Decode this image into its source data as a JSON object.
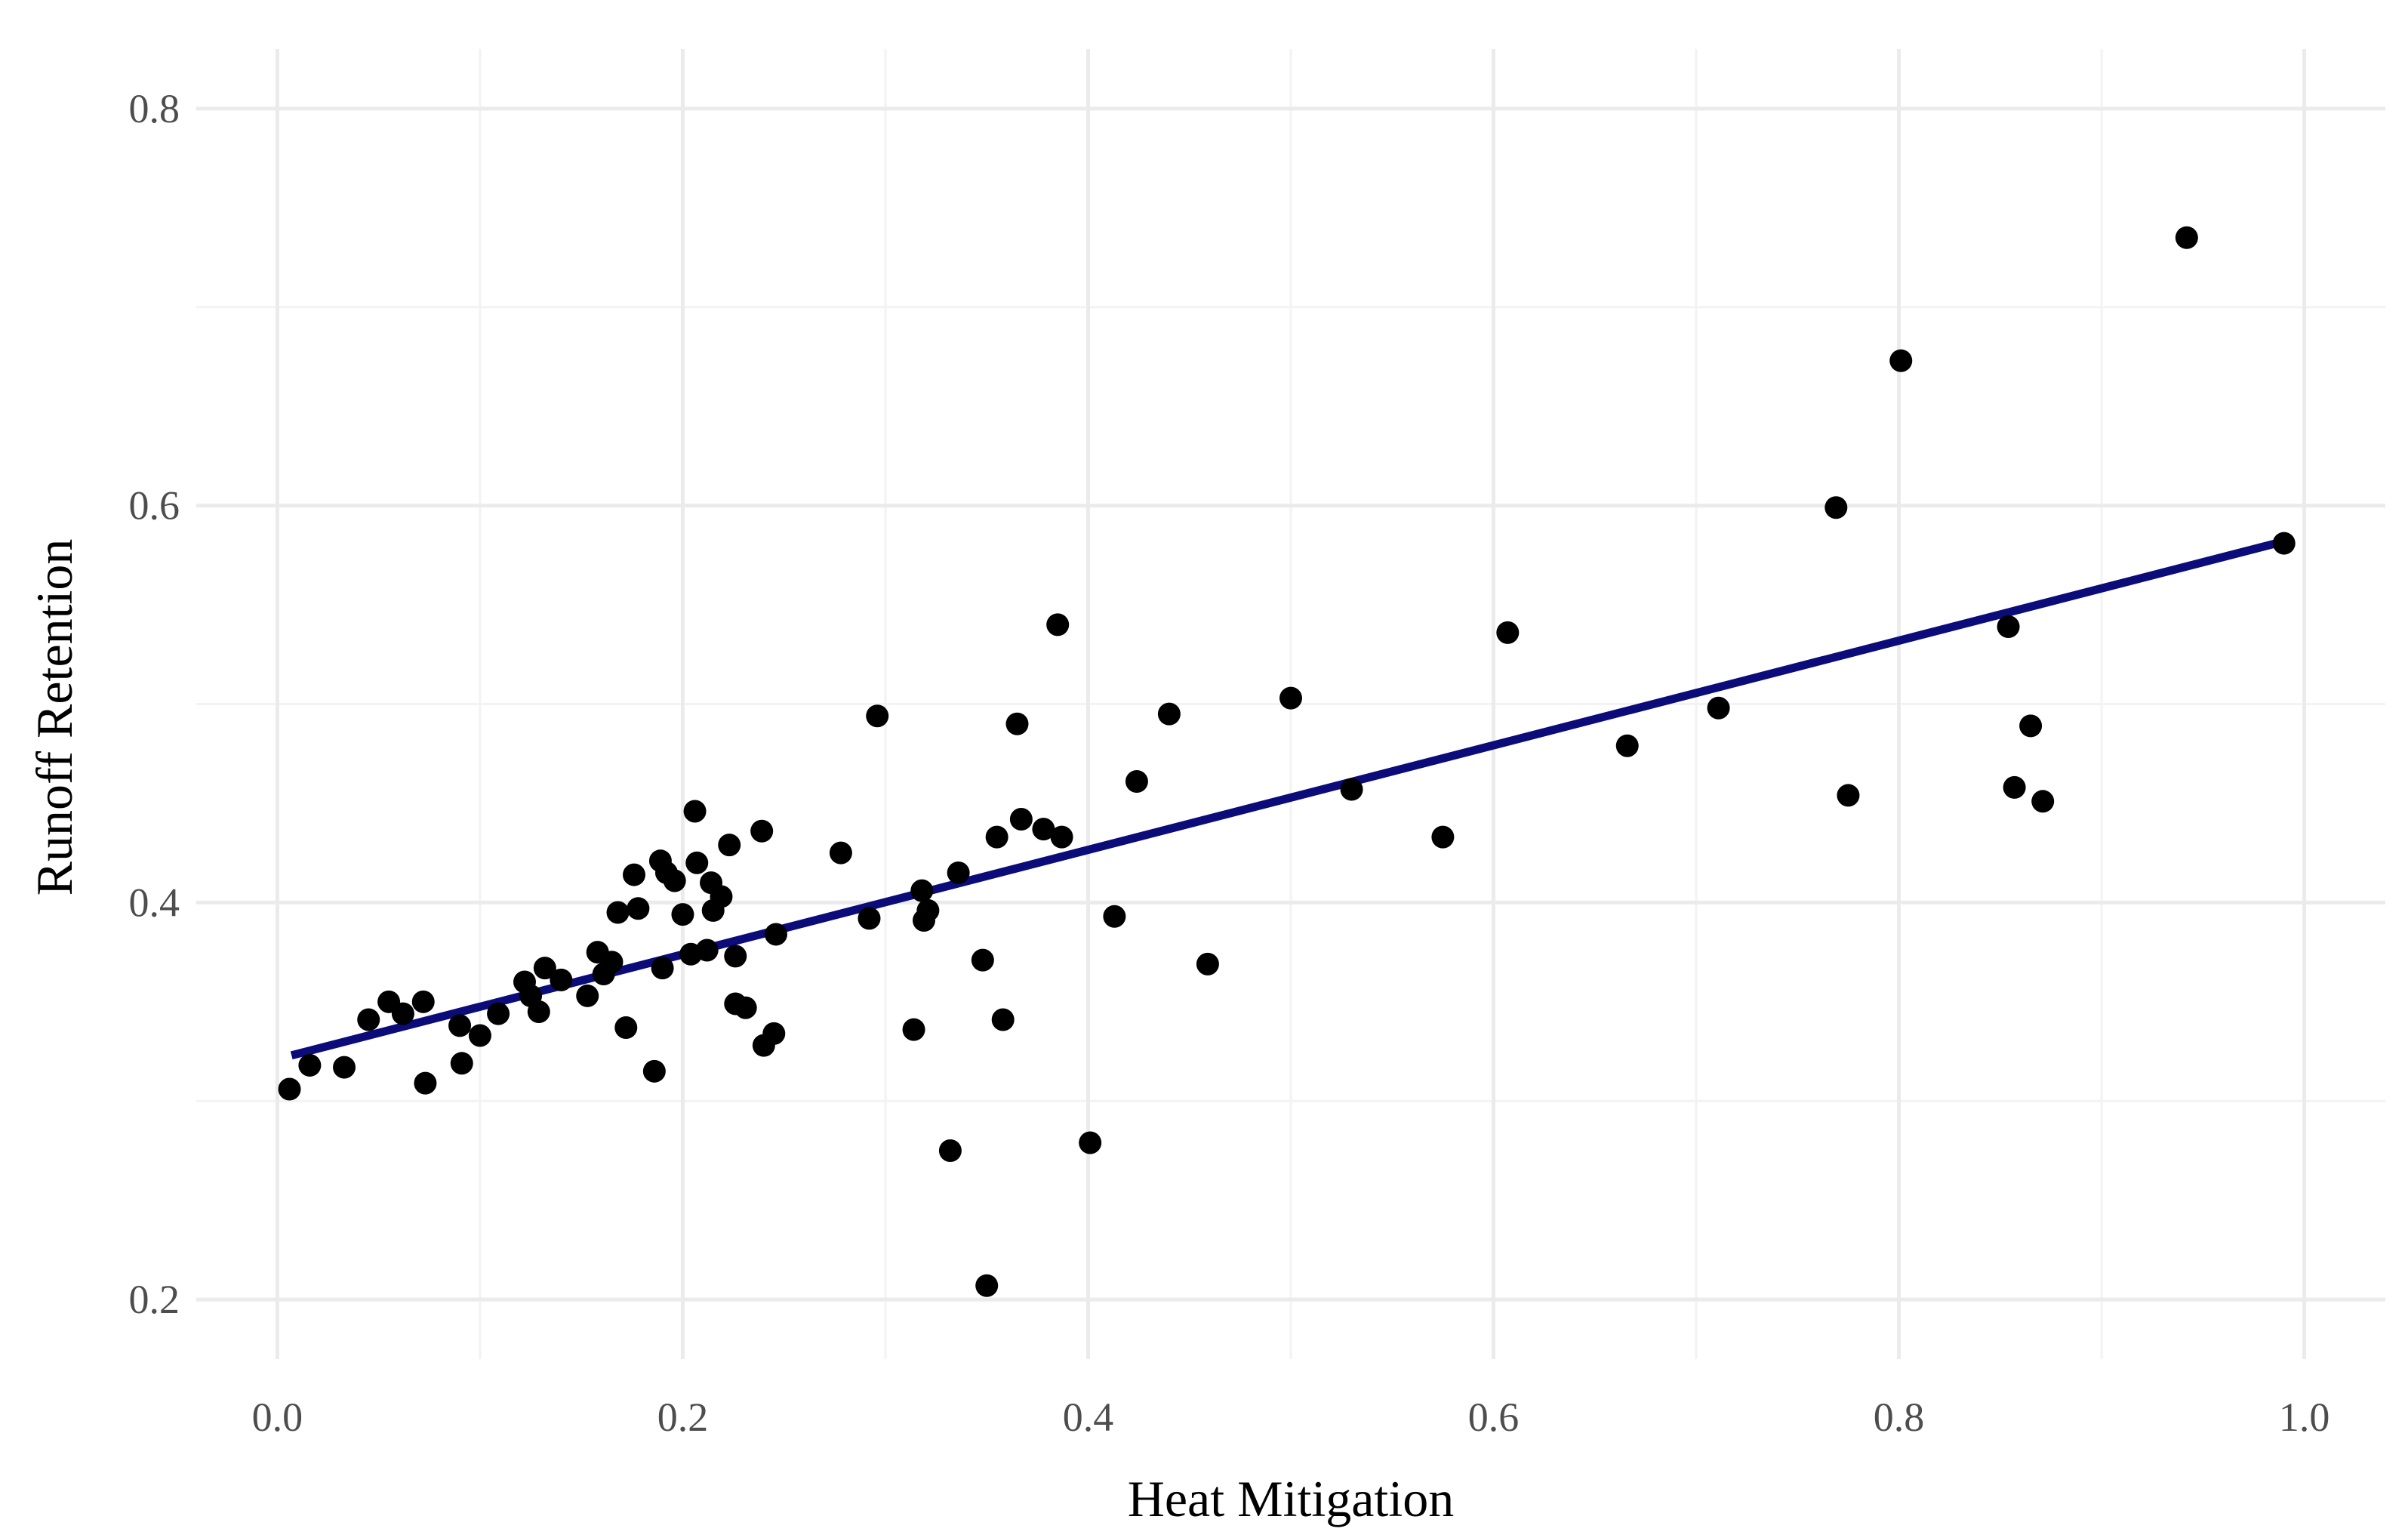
{
  "chart_data": {
    "type": "scatter",
    "title": "",
    "xlabel": "Heat Mitigation",
    "ylabel": "Runoff Retention",
    "xlim": [
      -0.04,
      1.04
    ],
    "ylim": [
      0.17,
      0.83
    ],
    "x_ticks": [
      0.0,
      0.2,
      0.4,
      0.6,
      0.8,
      1.0
    ],
    "x_tick_labels": [
      "0.0",
      "0.2",
      "0.4",
      "0.6",
      "0.8",
      "1.0"
    ],
    "y_ticks": [
      0.2,
      0.4,
      0.6,
      0.8
    ],
    "y_tick_labels": [
      "0.2",
      "0.4",
      "0.6",
      "0.8"
    ],
    "grid": true,
    "legend": "none",
    "colors": {
      "points": "#000000",
      "fit_line": "#0b0b7a",
      "grid": "#ebebeb"
    },
    "fit_line": {
      "x": [
        0.007,
        0.99
      ],
      "y": [
        0.323,
        0.582
      ]
    },
    "points": [
      [
        0.006,
        0.306
      ],
      [
        0.016,
        0.318
      ],
      [
        0.033,
        0.317
      ],
      [
        0.045,
        0.341
      ],
      [
        0.055,
        0.35
      ],
      [
        0.062,
        0.344
      ],
      [
        0.072,
        0.35
      ],
      [
        0.073,
        0.309
      ],
      [
        0.09,
        0.338
      ],
      [
        0.091,
        0.319
      ],
      [
        0.1,
        0.333
      ],
      [
        0.109,
        0.344
      ],
      [
        0.122,
        0.36
      ],
      [
        0.125,
        0.353
      ],
      [
        0.129,
        0.345
      ],
      [
        0.132,
        0.367
      ],
      [
        0.14,
        0.361
      ],
      [
        0.153,
        0.353
      ],
      [
        0.158,
        0.375
      ],
      [
        0.161,
        0.364
      ],
      [
        0.165,
        0.37
      ],
      [
        0.168,
        0.395
      ],
      [
        0.172,
        0.337
      ],
      [
        0.176,
        0.414
      ],
      [
        0.178,
        0.397
      ],
      [
        0.186,
        0.315
      ],
      [
        0.189,
        0.421
      ],
      [
        0.19,
        0.367
      ],
      [
        0.192,
        0.415
      ],
      [
        0.196,
        0.411
      ],
      [
        0.2,
        0.394
      ],
      [
        0.204,
        0.374
      ],
      [
        0.206,
        0.446
      ],
      [
        0.207,
        0.42
      ],
      [
        0.212,
        0.376
      ],
      [
        0.214,
        0.41
      ],
      [
        0.215,
        0.396
      ],
      [
        0.219,
        0.403
      ],
      [
        0.223,
        0.429
      ],
      [
        0.226,
        0.349
      ],
      [
        0.226,
        0.373
      ],
      [
        0.231,
        0.347
      ],
      [
        0.239,
        0.436
      ],
      [
        0.24,
        0.328
      ],
      [
        0.245,
        0.334
      ],
      [
        0.246,
        0.384
      ],
      [
        0.278,
        0.425
      ],
      [
        0.292,
        0.392
      ],
      [
        0.296,
        0.494
      ],
      [
        0.314,
        0.336
      ],
      [
        0.318,
        0.406
      ],
      [
        0.319,
        0.391
      ],
      [
        0.321,
        0.396
      ],
      [
        0.332,
        0.275
      ],
      [
        0.336,
        0.415
      ],
      [
        0.348,
        0.371
      ],
      [
        0.35,
        0.207
      ],
      [
        0.355,
        0.433
      ],
      [
        0.358,
        0.341
      ],
      [
        0.365,
        0.49
      ],
      [
        0.367,
        0.442
      ],
      [
        0.378,
        0.437
      ],
      [
        0.385,
        0.54
      ],
      [
        0.387,
        0.433
      ],
      [
        0.401,
        0.279
      ],
      [
        0.413,
        0.393
      ],
      [
        0.424,
        0.461
      ],
      [
        0.44,
        0.495
      ],
      [
        0.459,
        0.369
      ],
      [
        0.5,
        0.503
      ],
      [
        0.53,
        0.457
      ],
      [
        0.575,
        0.433
      ],
      [
        0.607,
        0.536
      ],
      [
        0.666,
        0.479
      ],
      [
        0.711,
        0.498
      ],
      [
        0.769,
        0.599
      ],
      [
        0.775,
        0.454
      ],
      [
        0.801,
        0.673
      ],
      [
        0.854,
        0.539
      ],
      [
        0.857,
        0.458
      ],
      [
        0.865,
        0.489
      ],
      [
        0.871,
        0.451
      ],
      [
        0.942,
        0.735
      ],
      [
        0.99,
        0.581
      ]
    ]
  }
}
